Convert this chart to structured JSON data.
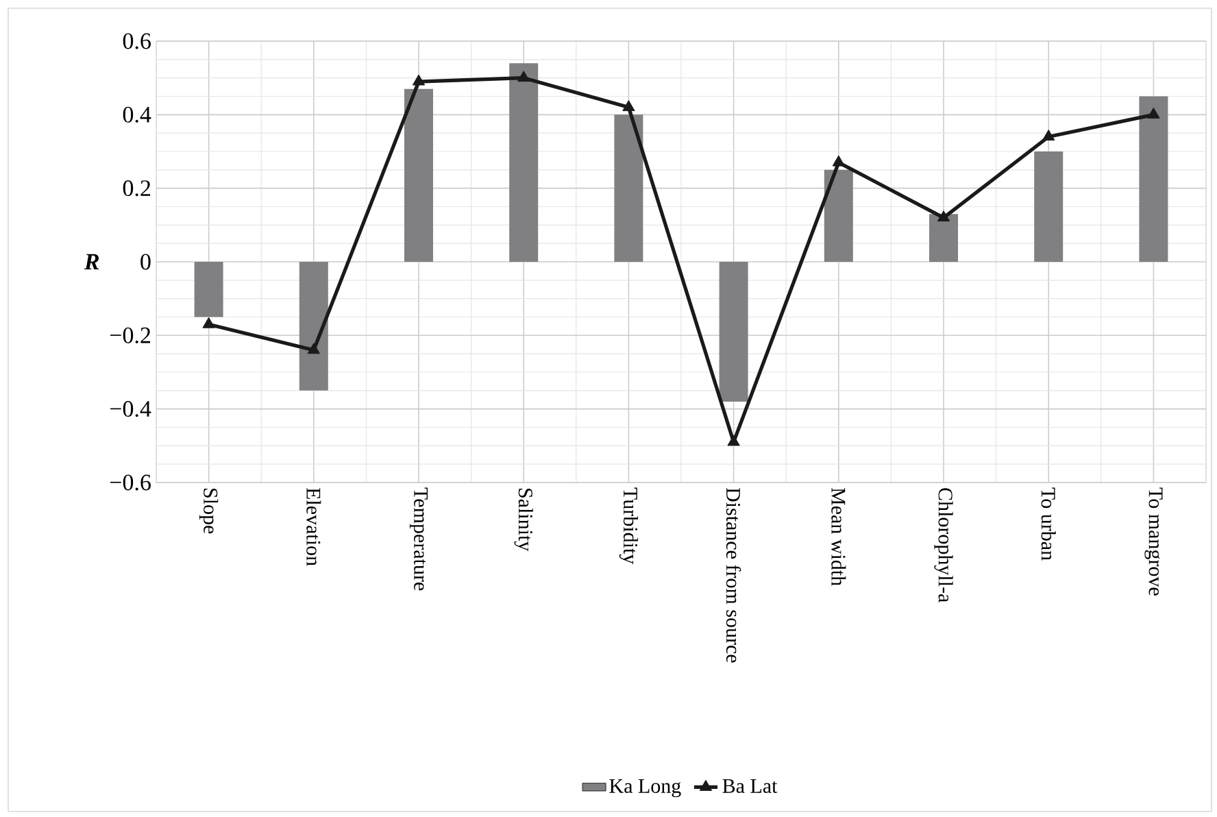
{
  "chart_data": {
    "type": "bar",
    "ylabel": "R",
    "categories": [
      "Slope",
      "Elevation",
      "Temperature",
      "Salinity",
      "Turbidity",
      "Distance from source",
      "Mean width",
      "Chlorophyll-a",
      "To urban",
      "To mangrove"
    ],
    "series": [
      {
        "name": "Ka Long",
        "color": "#808083",
        "values": [
          -0.15,
          -0.35,
          0.47,
          0.54,
          0.4,
          -0.38,
          0.25,
          0.13,
          0.3,
          0.45
        ]
      },
      {
        "name": "Ba Lat",
        "type": "line",
        "color": "#1a1a1a",
        "marker": "triangle",
        "line_style": "solid",
        "values": [
          -0.17,
          -0.24,
          0.49,
          0.5,
          0.42,
          -0.49,
          0.27,
          0.12,
          0.34,
          0.4
        ]
      }
    ],
    "ylim": [
      -0.6,
      0.6
    ],
    "yticks": [
      {
        "value": -0.6,
        "label": "−0.6"
      },
      {
        "value": -0.4,
        "label": "−0.4"
      },
      {
        "value": -0.2,
        "label": "−0.2"
      },
      0,
      0.2,
      0.4,
      0.6
    ],
    "grid": true,
    "legend": "bottom"
  }
}
